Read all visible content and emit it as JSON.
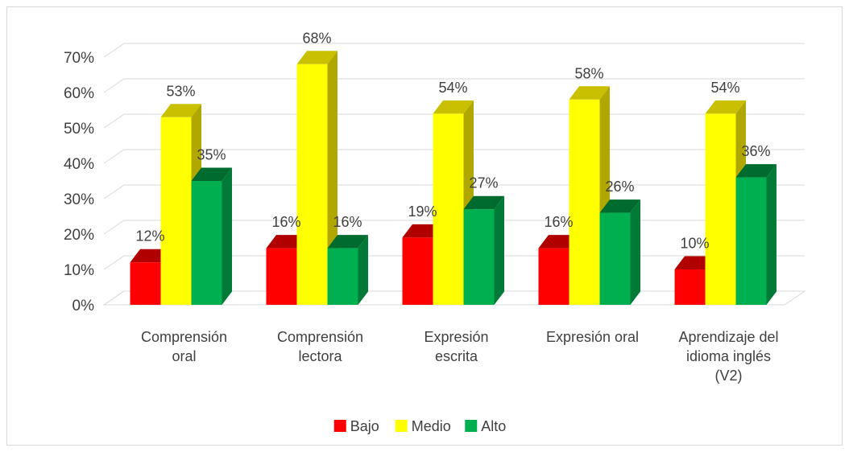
{
  "chart_data": {
    "type": "bar",
    "style": "3d-clustered-column",
    "categories": [
      [
        "Comprensión",
        "oral"
      ],
      [
        "Comprensión",
        "lectora"
      ],
      [
        "Expresión",
        "escrita"
      ],
      [
        "Expresión oral"
      ],
      [
        "Aprendizaje del",
        "idioma inglés",
        "(V2)"
      ]
    ],
    "series": [
      {
        "name": "Bajo",
        "values": [
          12,
          16,
          19,
          16,
          10
        ],
        "color": "#ff0000",
        "side": "#c00000",
        "top": "#b00000"
      },
      {
        "name": "Medio",
        "values": [
          53,
          68,
          54,
          58,
          54
        ],
        "color": "#ffff00",
        "side": "#b0a800",
        "top": "#c8c000"
      },
      {
        "name": "Alto",
        "values": [
          35,
          16,
          27,
          26,
          36
        ],
        "color": "#00b050",
        "side": "#007a36",
        "top": "#006b2e"
      }
    ],
    "value_suffix": "%",
    "yticks": [
      0,
      10,
      20,
      30,
      40,
      50,
      60,
      70
    ],
    "ylim": [
      0,
      70
    ],
    "grid": true,
    "legend_position": "bottom"
  }
}
